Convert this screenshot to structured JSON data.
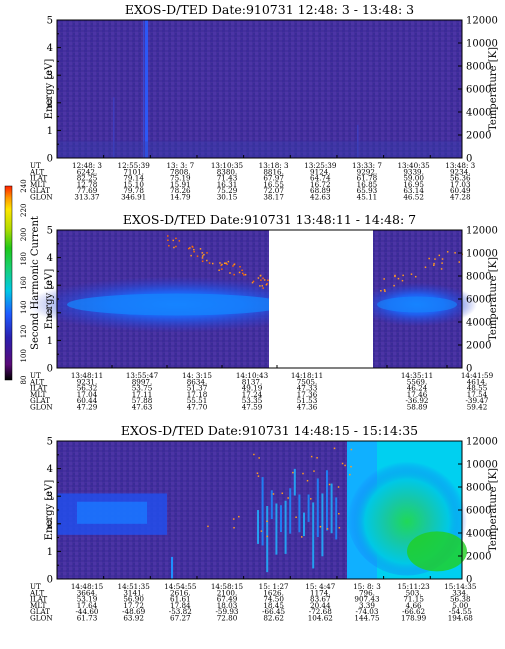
{
  "chart_data": [
    {
      "type": "heatmap",
      "title": "EXOS-D/TED   Date:910731  12:48: 3 - 13:48: 3",
      "ylabel": "Energy [eV]",
      "y2label": "Temperature [K]",
      "ylim": [
        0,
        5
      ],
      "y2lim": [
        0,
        12000
      ],
      "yticks": [
        "0",
        "1",
        "2",
        "3",
        "4",
        "5"
      ],
      "y2ticks": [
        "0",
        "2000",
        "4000",
        "6000",
        "8000",
        "10000",
        "12000"
      ],
      "table_labels": [
        "UT",
        "ALT",
        "ILAT",
        "MLT",
        "GLAT",
        "GLON"
      ],
      "table_columns": [
        [
          "12:48: 3",
          "6242.",
          "82.25",
          "12.78",
          "77.69",
          "313.37"
        ],
        [
          "12:55:39",
          "7101.",
          "79.14",
          "15.10",
          "79.78",
          "346.91"
        ],
        [
          "13: 3: 7",
          "7808.",
          "75.19",
          "15.91",
          "78.26",
          "14.79"
        ],
        [
          "13:10:35",
          "8380.",
          "71.43",
          "16.31",
          "75.29",
          "30.15"
        ],
        [
          "13:18: 3",
          "8816.",
          "67.97",
          "16.55",
          "72.07",
          "38.17"
        ],
        [
          "13:25:39",
          "9124.",
          "64.74",
          "16.72",
          "68.89",
          "42.63"
        ],
        [
          "13:33: 7",
          "9292.",
          "61.78",
          "16.85",
          "65.93",
          "45.11"
        ],
        [
          "13:40:35",
          "9339.",
          "59.00",
          "16.95",
          "63.14",
          "46.52"
        ],
        [
          "13:48: 3",
          "9234.",
          "56.36",
          "17.03",
          "60.49",
          "47.28"
        ]
      ]
    },
    {
      "type": "heatmap",
      "title": "EXOS-D/TED   Date:910731  13:48:11 - 14:48: 7",
      "ylabel": "Energy [eV]",
      "y2label": "Temperature [K]",
      "ylim": [
        0,
        5
      ],
      "y2lim": [
        0,
        12000
      ],
      "yticks": [
        "0",
        "1",
        "2",
        "3",
        "4",
        "5"
      ],
      "y2ticks": [
        "0",
        "2000",
        "4000",
        "6000",
        "8000",
        "10000",
        "12000"
      ],
      "data_gap": [
        "14:18:11",
        "14:35:11"
      ],
      "table_labels": [
        "UT",
        "ALT",
        "ILAT",
        "MLT",
        "GLAT",
        "GLON"
      ],
      "table_columns": [
        [
          "13:48:11",
          "9231.",
          "56.32",
          "17.04",
          "60.44",
          "47.29"
        ],
        [
          "13:55:47",
          "8997.",
          "53.75",
          "17.11",
          "57.88",
          "47.63"
        ],
        [
          "14: 3:15",
          "8634.",
          "51.37",
          "17.18",
          "55.51",
          "47.70"
        ],
        [
          "14:10:43",
          "8137.",
          "49.19",
          "17.24",
          "53.35",
          "47.59"
        ],
        [
          "14:18:11",
          "7505.",
          "47.33",
          "17.36",
          "51.53",
          "47.36"
        ],
        [
          "14:35:11",
          "5569.",
          "46.24",
          "17.46",
          "-36.92",
          "58.89"
        ],
        [
          "14:41:59",
          "4614.",
          "48.55",
          "17.54",
          "-39.47",
          "59.42"
        ]
      ]
    },
    {
      "type": "heatmap",
      "title": "EXOS-D/TED   Date:910731  14:48:15 - 15:14:35",
      "ylabel": "Energy [eV]",
      "y2label": "Temperature [K]",
      "ylim": [
        0,
        5
      ],
      "y2lim": [
        0,
        12000
      ],
      "yticks": [
        "0",
        "1",
        "2",
        "3",
        "4",
        "5"
      ],
      "y2ticks": [
        "0",
        "2000",
        "4000",
        "6000",
        "8000",
        "10000",
        "12000"
      ],
      "table_labels": [
        "UT",
        "ALT",
        "ILAT",
        "MLT",
        "GLAT",
        "GLON"
      ],
      "table_columns": [
        [
          "14:48:15",
          "3664.",
          "53.19",
          "17.64",
          "-44.60",
          "61.73"
        ],
        [
          "14:51:35",
          "3141.",
          "56.90",
          "17.72",
          "-48.69",
          "63.92"
        ],
        [
          "14:54:55",
          "2616.",
          "61.61",
          "17.84",
          "-53.82",
          "67.27"
        ],
        [
          "14:58:15",
          "2100.",
          "67.49",
          "18.03",
          "-59.93",
          "72.80"
        ],
        [
          "15: 1:27",
          "1626.",
          "74.50",
          "18.45",
          "-66.45",
          "82.62"
        ],
        [
          "15: 4:47",
          "1174.",
          "83.67",
          "20.44",
          "-72.68",
          "104.62"
        ],
        [
          "15: 8: 3",
          "796.",
          "907.43",
          "3.39",
          "-74.03",
          "144.75"
        ],
        [
          "15:11:23",
          "503.",
          "71.15",
          "4.66",
          "-66.62",
          "178.99"
        ],
        [
          "15:14:35",
          "334.",
          "56.38",
          "5.00",
          "-54.55",
          "194.68"
        ]
      ]
    }
  ],
  "colorbar": {
    "label": "Second Harmonic Current",
    "ticks": [
      "80",
      "100",
      "120",
      "140",
      "160",
      "180",
      "200",
      "220",
      "240"
    ],
    "colors": [
      "#000000",
      "#5a0a78",
      "#2a20b0",
      "#1e5aff",
      "#00c8e6",
      "#18d070",
      "#20c818",
      "#b4dc00",
      "#ffe600",
      "#ff9600",
      "#ff2000"
    ]
  }
}
